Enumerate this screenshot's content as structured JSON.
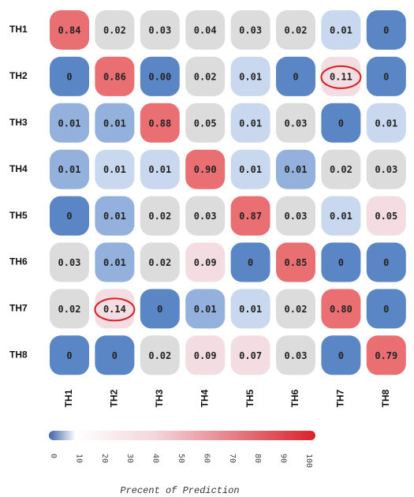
{
  "chart_data": {
    "type": "heatmap",
    "rows": [
      "TH1",
      "TH2",
      "TH3",
      "TH4",
      "TH5",
      "TH6",
      "TH7",
      "TH8"
    ],
    "columns": [
      "TH1",
      "TH2",
      "TH3",
      "TH4",
      "TH5",
      "TH6",
      "TH7",
      "TH8"
    ],
    "values": [
      [
        0.84,
        0.02,
        0.03,
        0.04,
        0.03,
        0.02,
        0.01,
        0
      ],
      [
        0,
        0.86,
        0,
        0.02,
        0.01,
        0,
        0.11,
        0
      ],
      [
        0.01,
        0.01,
        0.88,
        0.05,
        0.01,
        0.03,
        0,
        0.01
      ],
      [
        0.01,
        0.01,
        0.01,
        0.9,
        0.01,
        0.01,
        0.02,
        0.03
      ],
      [
        0,
        0.01,
        0.02,
        0.03,
        0.87,
        0.03,
        0.01,
        0.05
      ],
      [
        0.03,
        0.01,
        0.02,
        0.09,
        0,
        0.85,
        0,
        0
      ],
      [
        0.02,
        0.14,
        0,
        0.01,
        0.01,
        0.02,
        0.8,
        0
      ],
      [
        0,
        0,
        0.02,
        0.09,
        0.07,
        0.03,
        0,
        0.79
      ]
    ],
    "value_labels": [
      [
        "0.84",
        "0.02",
        "0.03",
        "0.04",
        "0.03",
        "0.02",
        "0.01",
        "0"
      ],
      [
        "0",
        "0.86",
        "0.00",
        "0.02",
        "0.01",
        "0",
        "0.11",
        "0"
      ],
      [
        "0.01",
        "0.01",
        "0.88",
        "0.05",
        "0.01",
        "0.03",
        "0",
        "0.01"
      ],
      [
        "0.01",
        "0.01",
        "0.01",
        "0.90",
        "0.01",
        "0.01",
        "0.02",
        "0.03"
      ],
      [
        "0",
        "0.01",
        "0.02",
        "0.03",
        "0.87",
        "0.03",
        "0.01",
        "0.05"
      ],
      [
        "0.03",
        "0.01",
        "0.02",
        "0.09",
        "0",
        "0.85",
        "0",
        "0"
      ],
      [
        "0.02",
        "0.14",
        "0",
        "0.01",
        "0.01",
        "0.02",
        "0.80",
        "0"
      ],
      [
        "0",
        "0",
        "0.02",
        "0.09",
        "0.07",
        "0.03",
        "0",
        "0.79"
      ]
    ],
    "colors": [
      [
        "#ea6f72",
        "#dcdcdc",
        "#dcdcdc",
        "#dcdcdc",
        "#dcdcdc",
        "#dcdcdc",
        "#c9d8ef",
        "#5b86c5"
      ],
      [
        "#5b86c5",
        "#ea6f72",
        "#5b86c5",
        "#dcdcdc",
        "#c9d8ef",
        "#5b86c5",
        "#f3dde3",
        "#5b86c5"
      ],
      [
        "#94b1dd",
        "#94b1dd",
        "#ea6f72",
        "#dcdcdc",
        "#c9d8ef",
        "#dcdcdc",
        "#5b86c5",
        "#c9d8ef"
      ],
      [
        "#94b1dd",
        "#c9d8ef",
        "#c9d8ef",
        "#ea6f72",
        "#c9d8ef",
        "#94b1dd",
        "#dcdcdc",
        "#dcdcdc"
      ],
      [
        "#5b86c5",
        "#94b1dd",
        "#dcdcdc",
        "#dcdcdc",
        "#ea6f72",
        "#dcdcdc",
        "#c9d8ef",
        "#f3dde3"
      ],
      [
        "#dcdcdc",
        "#94b1dd",
        "#dcdcdc",
        "#f3dde3",
        "#5b86c5",
        "#ea6f72",
        "#5b86c5",
        "#5b86c5"
      ],
      [
        "#dcdcdc",
        "#f3dde3",
        "#5b86c5",
        "#94b1dd",
        "#c9d8ef",
        "#dcdcdc",
        "#ea6f72",
        "#5b86c5"
      ],
      [
        "#5b86c5",
        "#5b86c5",
        "#dcdcdc",
        "#f3dde3",
        "#f3dde3",
        "#dcdcdc",
        "#5b86c5",
        "#ea6f72"
      ]
    ],
    "highlighted": [
      [
        1,
        6
      ],
      [
        6,
        1
      ]
    ],
    "highlight_color": "#d42020",
    "colorbar": {
      "label": "Precent of Prediction",
      "lim": [
        0,
        100
      ],
      "ticks": [
        0,
        10,
        20,
        30,
        40,
        50,
        60,
        70,
        80,
        90,
        100
      ]
    }
  }
}
